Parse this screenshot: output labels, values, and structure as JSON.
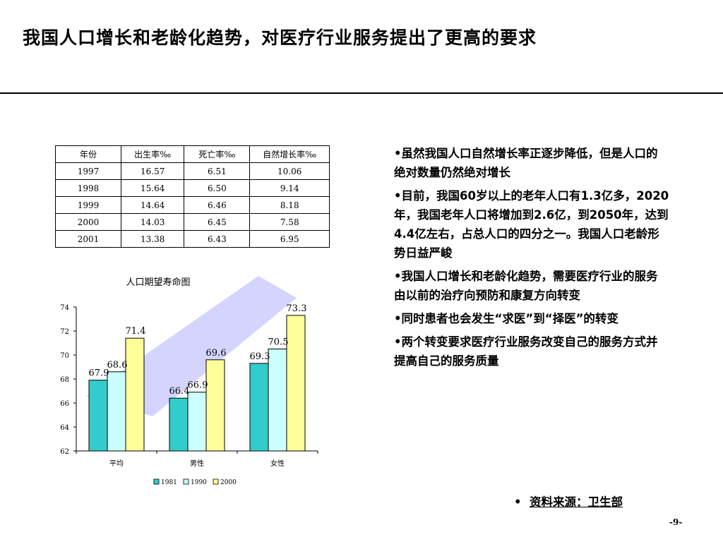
{
  "slide": {
    "title": "我国人口增长和老龄化趋势，对医疗行业服务提出了更高的要求",
    "page_number": "-9-"
  },
  "table": {
    "headers": [
      "年份",
      "出生率‰",
      "死亡率‰",
      "自然增长率‰"
    ],
    "rows": [
      [
        "1997",
        "16.57",
        "6.51",
        "10.06"
      ],
      [
        "1998",
        "15.64",
        "6.50",
        "9.14"
      ],
      [
        "1999",
        "14.64",
        "6.46",
        "8.18"
      ],
      [
        "2000",
        "14.03",
        "6.45",
        "7.58"
      ],
      [
        "2001",
        "13.38",
        "6.43",
        "6.95"
      ]
    ]
  },
  "chart_data": {
    "type": "bar",
    "title": "人口期望寿命图",
    "categories": [
      "平均",
      "男性",
      "女性"
    ],
    "series": [
      {
        "name": "1981",
        "values": [
          67.9,
          66.4,
          69.3
        ],
        "color": "#33cccc"
      },
      {
        "name": "1990",
        "values": [
          68.6,
          66.9,
          70.5
        ],
        "color": "#ccffff"
      },
      {
        "name": "2000",
        "values": [
          71.4,
          69.6,
          73.3
        ],
        "color": "#ffff99"
      }
    ],
    "ylim": [
      62,
      74
    ],
    "yticks": [
      "62",
      "64",
      "66",
      "68",
      "70",
      "72",
      "74"
    ],
    "data_labels": [
      "67.9",
      "68.6",
      "71.4",
      "66.4",
      "66.9",
      "69.6",
      "69.3",
      "70.5",
      "73.3"
    ],
    "legend": "bottom",
    "grid": false,
    "background_arrow_color": "#ccccff"
  },
  "bullets": [
    {
      "marker": "•",
      "text": "虽然我国人口自然增长率正逐步降低，但是人口的绝对数量仍然绝对增长"
    },
    {
      "marker": "•",
      "text": "目前，我国60岁以上的老年人口有1.3亿多，2020年，我国老年人口将增加到2.6亿，到2050年，达到4.4亿左右，占总人口的四分之一。我国人口老龄形势日益严峻"
    },
    {
      "marker": "•",
      "text": "我国人口增长和老龄化趋势，需要医疗行业的服务由以前的治疗向预防和康复方向转变"
    },
    {
      "marker": "•",
      "text": "同时患者也会发生“求医”到“择医”的转变"
    },
    {
      "marker": "•",
      "text": "两个转变要求医疗行业服务改变自己的服务方式并提高自己的服务质量"
    }
  ],
  "source": {
    "marker": "•",
    "text": "资料来源：卫生部"
  }
}
